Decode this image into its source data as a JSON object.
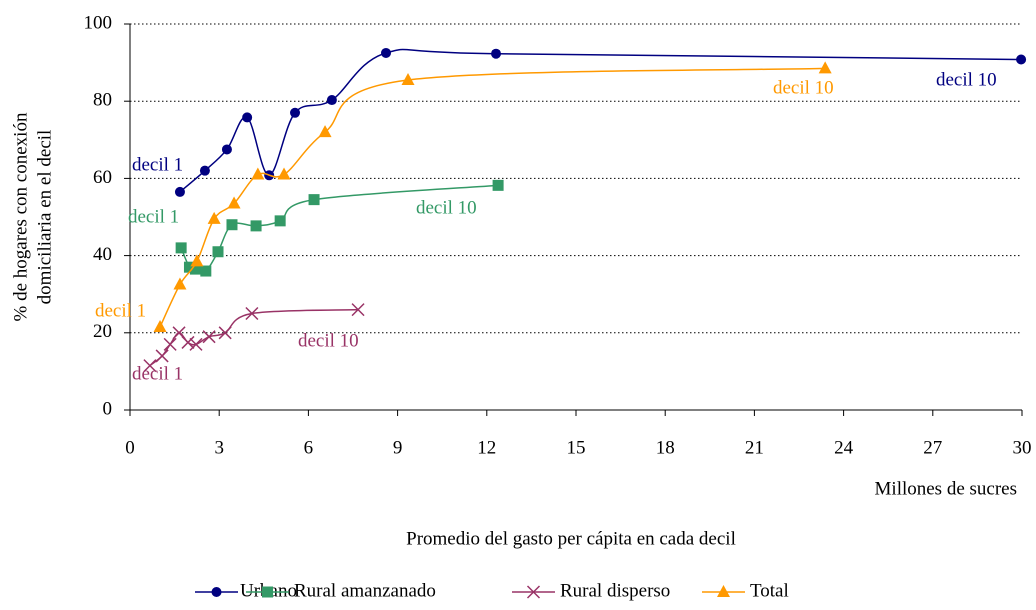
{
  "chart_data": {
    "type": "line",
    "xlabel": "Promedio del gasto per cápita en cada decil",
    "xunit": "Millones de sucres",
    "ylabel": [
      "% de hogares con conexión",
      "domiciliaria en el decil"
    ],
    "xlim": [
      0,
      30
    ],
    "xticks": [
      0,
      3,
      6,
      9,
      12,
      15,
      18,
      21,
      24,
      27,
      30
    ],
    "ylim": [
      0,
      100
    ],
    "yticks": [
      0,
      20,
      40,
      60,
      80,
      100
    ],
    "grid": true,
    "legend": "bottom",
    "series": [
      {
        "name": "Urbano",
        "color": "#000080",
        "marker": "circle",
        "x": [
          1.68,
          2.52,
          3.26,
          3.94,
          4.68,
          5.55,
          6.79,
          8.61,
          12.31,
          29.97
        ],
        "values": [
          56.5,
          62,
          67.5,
          75.8,
          60.8,
          77,
          80.3,
          92.5,
          92.3,
          90.8
        ]
      },
      {
        "name": "Rural amanzanado",
        "color": "#339966",
        "marker": "square",
        "x": [
          1.72,
          2.0,
          2.2,
          2.55,
          2.96,
          3.43,
          4.24,
          5.05,
          6.19,
          12.38
        ],
        "values": [
          42,
          37,
          36.5,
          36,
          41,
          48,
          47.7,
          49,
          54.5,
          58.2
        ]
      },
      {
        "name": "Rural disperso",
        "color": "#993366",
        "marker": "x",
        "x": [
          0.67,
          1.08,
          1.35,
          1.65,
          1.95,
          2.22,
          2.66,
          3.2,
          4.1,
          7.67
        ],
        "values": [
          11.5,
          14,
          17,
          20,
          17.5,
          17,
          19,
          20,
          25,
          26
        ]
      },
      {
        "name": "Total",
        "color": "#ff9900",
        "marker": "triangle",
        "x": [
          1.01,
          1.68,
          2.25,
          2.83,
          3.5,
          4.3,
          5.18,
          6.56,
          9.35,
          23.38
        ],
        "values": [
          21.5,
          32.5,
          38.5,
          49.5,
          53.5,
          61,
          61,
          72,
          85.5,
          88.5
        ]
      }
    ],
    "annotations": [
      {
        "text": "decil 1",
        "color": "#000080"
      },
      {
        "text": "decil 10",
        "color": "#000080"
      },
      {
        "text": "decil 1",
        "color": "#339966"
      },
      {
        "text": "decil 10",
        "color": "#339966"
      },
      {
        "text": "decil 1",
        "color": "#993366"
      },
      {
        "text": "decil 10",
        "color": "#993366"
      },
      {
        "text": "decil 1",
        "color": "#ff9900"
      },
      {
        "text": "decil 10",
        "color": "#ff9900"
      }
    ]
  }
}
